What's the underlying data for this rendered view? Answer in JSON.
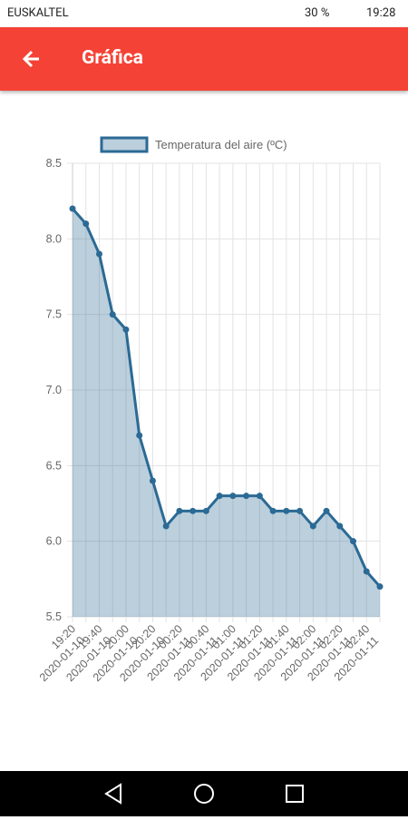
{
  "status_bar": {
    "carrier": "EUSKALTEL",
    "battery": "30 %",
    "time": "19:28"
  },
  "app_bar": {
    "title": "Gráfica"
  },
  "chart_data": {
    "type": "line",
    "title": null,
    "categories": [
      [
        "19:20",
        "2020-01-10"
      ],
      null,
      [
        "19:40",
        "2020-01-10"
      ],
      null,
      [
        "20:00",
        "2020-01-10"
      ],
      null,
      [
        "20:20",
        "2020-01-10"
      ],
      null,
      [
        "00:20",
        "2020-01-11"
      ],
      null,
      [
        "00:40",
        "2020-01-11"
      ],
      null,
      [
        "01:00",
        "2020-01-11"
      ],
      null,
      [
        "01:20",
        "2020-01-11"
      ],
      null,
      [
        "01:40",
        "2020-01-11"
      ],
      null,
      [
        "02:00",
        "2020-01-11"
      ],
      null,
      [
        "02:20",
        "2020-01-11"
      ],
      null,
      [
        "02:40",
        "2020-01-11"
      ],
      null
    ],
    "series": [
      {
        "name": "Temperatura del aire (ºC)",
        "color": "#2b6a94",
        "values": [
          8.2,
          8.1,
          7.9,
          7.5,
          7.4,
          6.7,
          6.4,
          6.1,
          6.2,
          6.2,
          6.2,
          6.3,
          6.3,
          6.3,
          6.3,
          6.2,
          6.2,
          6.2,
          6.1,
          6.2,
          6.1,
          6.0,
          5.8,
          5.7
        ]
      }
    ],
    "ylim": [
      5.5,
      8.5
    ],
    "yticks": [
      5.5,
      {
        "value": 6,
        "label": "6.0"
      },
      6.5,
      {
        "value": 7,
        "label": "7.0"
      },
      7.5,
      {
        "value": 8,
        "label": "8.0"
      },
      8.5
    ],
    "grid": true,
    "legend": "top",
    "fill": true
  }
}
